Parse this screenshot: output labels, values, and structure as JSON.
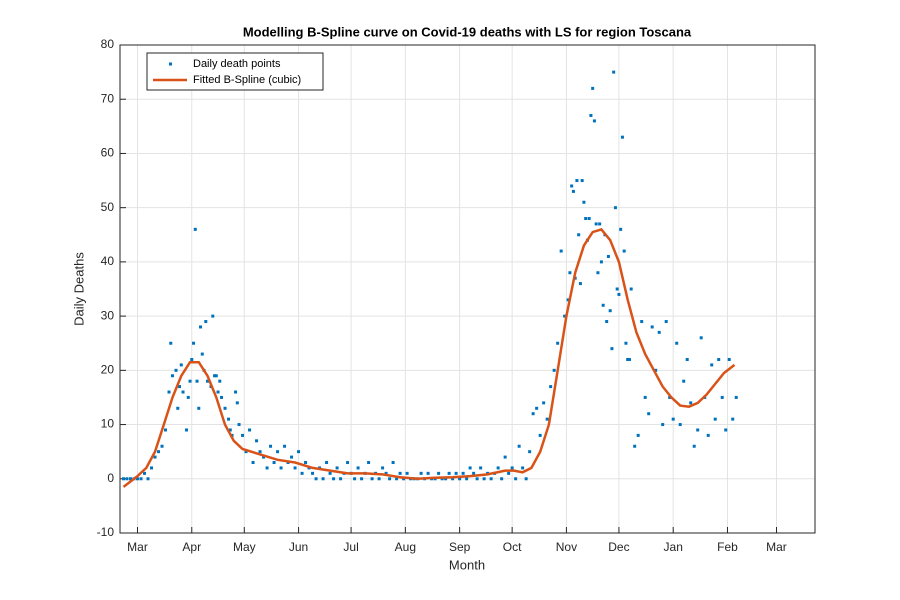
{
  "chart_data": {
    "type": "line",
    "title": "Modelling B-Spline curve on Covid-19 deaths with LS for region Toscana",
    "x_label": "Month",
    "y_label": "Daily Deaths",
    "grid": true,
    "legend": "upper left",
    "xlim": [
      -10,
      387
    ],
    "ylim": [
      -10,
      80
    ],
    "xticks": [
      {
        "value": 0,
        "label": "Mar"
      },
      {
        "value": 31,
        "label": "Apr"
      },
      {
        "value": 61,
        "label": "May"
      },
      {
        "value": 92,
        "label": "Jun"
      },
      {
        "value": 122,
        "label": "Jul"
      },
      {
        "value": 153,
        "label": "Aug"
      },
      {
        "value": 184,
        "label": "Sep"
      },
      {
        "value": 214,
        "label": "Oct"
      },
      {
        "value": 245,
        "label": "Nov"
      },
      {
        "value": 275,
        "label": "Dec"
      },
      {
        "value": 306,
        "label": "Jan"
      },
      {
        "value": 337,
        "label": "Feb"
      },
      {
        "value": 365,
        "label": "Mar"
      }
    ],
    "yticks": [
      -10,
      0,
      10,
      20,
      30,
      40,
      50,
      60,
      70,
      80
    ],
    "series": [
      {
        "name": "Daily death points",
        "type": "scatter",
        "color": "#0072BD",
        "x": [
          -8,
          -6,
          -4,
          -2,
          0,
          2,
          4,
          6,
          8,
          10,
          12,
          14,
          16,
          18,
          19,
          20,
          22,
          23,
          24,
          25,
          26,
          28,
          29,
          30,
          31,
          32,
          33,
          34,
          35,
          36,
          37,
          38,
          39,
          40,
          42,
          43,
          44,
          45,
          46,
          47,
          48,
          50,
          52,
          53,
          54,
          56,
          57,
          58,
          60,
          62,
          64,
          66,
          68,
          70,
          72,
          74,
          76,
          78,
          80,
          82,
          84,
          86,
          88,
          90,
          92,
          94,
          96,
          98,
          100,
          102,
          104,
          106,
          108,
          110,
          112,
          114,
          116,
          118,
          120,
          122,
          124,
          126,
          128,
          130,
          132,
          134,
          136,
          138,
          140,
          142,
          144,
          146,
          148,
          150,
          152,
          154,
          156,
          158,
          160,
          162,
          164,
          166,
          168,
          170,
          172,
          174,
          176,
          178,
          180,
          182,
          184,
          186,
          188,
          190,
          192,
          194,
          196,
          198,
          200,
          202,
          204,
          206,
          208,
          210,
          212,
          214,
          216,
          218,
          220,
          222,
          224,
          226,
          228,
          230,
          232,
          234,
          236,
          238,
          240,
          242,
          244,
          246,
          247,
          248,
          249,
          250,
          251,
          252,
          253,
          254,
          255,
          256,
          257,
          258,
          259,
          260,
          261,
          262,
          263,
          264,
          265,
          266,
          267,
          268,
          269,
          270,
          271,
          272,
          273,
          274,
          275,
          276,
          277,
          278,
          279,
          280,
          281,
          282,
          284,
          286,
          288,
          290,
          292,
          294,
          296,
          298,
          300,
          302,
          304,
          306,
          308,
          310,
          312,
          314,
          316,
          318,
          320,
          322,
          324,
          326,
          328,
          330,
          332,
          334,
          336,
          338,
          340,
          342
        ],
        "values": [
          0,
          0,
          0,
          0,
          0,
          0,
          1,
          0,
          2,
          4,
          5,
          6,
          9,
          16,
          25,
          19,
          20,
          13,
          17,
          21,
          16,
          9,
          15,
          18,
          22,
          25,
          46,
          18,
          13,
          28,
          23,
          20,
          29,
          18,
          17,
          30,
          19,
          19,
          16,
          18,
          15,
          13,
          11,
          9,
          8,
          16,
          14,
          10,
          8,
          5,
          9,
          3,
          7,
          5,
          4,
          2,
          6,
          3,
          5,
          2,
          6,
          3,
          4,
          2,
          5,
          1,
          3,
          2,
          1,
          0,
          2,
          0,
          3,
          1,
          0,
          2,
          0,
          1,
          3,
          1,
          0,
          2,
          0,
          1,
          3,
          0,
          1,
          0,
          2,
          1,
          0,
          3,
          0,
          1,
          0,
          1,
          0,
          0,
          0,
          1,
          0,
          1,
          0,
          0,
          1,
          0,
          0,
          1,
          0,
          1,
          0,
          1,
          0,
          2,
          1,
          0,
          2,
          0,
          1,
          0,
          1,
          2,
          0,
          4,
          1,
          2,
          0,
          6,
          2,
          0,
          5,
          12,
          13,
          8,
          14,
          11,
          17,
          20,
          25,
          42,
          30,
          33,
          38,
          54,
          53,
          37,
          55,
          45,
          36,
          55,
          51,
          48,
          44,
          48,
          67,
          72,
          66,
          47,
          38,
          47,
          40,
          32,
          45,
          29,
          41,
          31,
          24,
          75,
          50,
          35,
          34,
          46,
          63,
          42,
          25,
          22,
          22,
          35,
          6,
          8,
          29,
          15,
          12,
          28,
          20,
          27,
          10,
          29,
          15,
          11,
          25,
          10,
          18,
          22,
          14,
          6,
          9,
          26,
          15,
          8,
          21,
          11,
          22,
          15,
          9,
          22,
          11,
          15
        ]
      },
      {
        "name": "Fitted B-Spline (cubic)",
        "type": "line",
        "color": "#D95319",
        "x": [
          -8,
          -4,
          0,
          5,
          10,
          15,
          20,
          25,
          30,
          35,
          40,
          45,
          50,
          55,
          60,
          70,
          80,
          90,
          100,
          110,
          120,
          130,
          140,
          150,
          160,
          170,
          180,
          190,
          200,
          210,
          215,
          220,
          225,
          230,
          235,
          240,
          245,
          250,
          255,
          260,
          265,
          270,
          275,
          280,
          285,
          290,
          295,
          300,
          305,
          310,
          315,
          320,
          325,
          330,
          335,
          341
        ],
        "values": [
          -1.5,
          -0.5,
          0.5,
          2,
          5,
          10,
          15,
          19,
          21.5,
          21.5,
          19,
          15,
          10,
          7,
          5.5,
          4.5,
          3.5,
          3,
          2,
          1.5,
          1,
          1,
          0.8,
          0.3,
          0,
          0.2,
          0.3,
          0.5,
          0.8,
          1.5,
          1.5,
          1.2,
          2,
          5,
          10,
          20,
          30,
          38,
          43,
          45.5,
          46,
          44,
          40,
          33,
          27,
          23,
          20,
          17,
          15,
          13.5,
          13.3,
          14,
          15.5,
          17.5,
          19.5,
          21
        ]
      }
    ]
  }
}
